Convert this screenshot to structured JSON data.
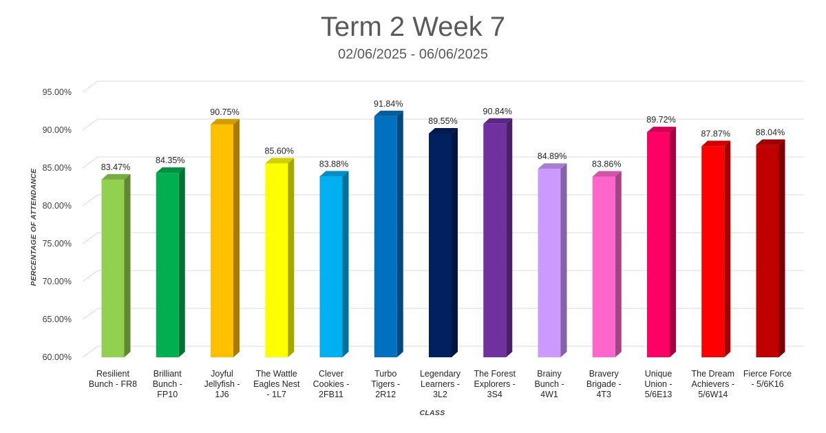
{
  "chart_data": {
    "type": "bar",
    "title": "Term 2 Week 7",
    "subtitle": "02/06/2025 - 06/06/2025",
    "xlabel": "CLASS",
    "ylabel": "PERCENTAGE OF ATTENDANCE",
    "ylim": [
      60,
      95
    ],
    "yticks": [
      "60.00%",
      "65.00%",
      "70.00%",
      "75.00%",
      "80.00%",
      "85.00%",
      "90.00%",
      "95.00%"
    ],
    "grid": true,
    "style": "3d-columns",
    "categories": [
      [
        "Resilient",
        "Bunch - FR8"
      ],
      [
        "Brilliant",
        "Bunch -",
        "FP10"
      ],
      [
        "Joyful",
        "Jellyfish -",
        "1J6"
      ],
      [
        "The Wattle",
        "Eagles Nest",
        "- 1L7"
      ],
      [
        "Clever",
        "Cookies -",
        "2FB11"
      ],
      [
        "Turbo",
        "Tigers -",
        "2R12"
      ],
      [
        "Legendary",
        "Learners -",
        "3L2"
      ],
      [
        "The Forest",
        "Explorers -",
        "3S4"
      ],
      [
        "Brainy",
        "Bunch -",
        "4W1"
      ],
      [
        "Bravery",
        "Brigade -",
        "4T3"
      ],
      [
        "Unique",
        "Union -",
        "5/6E13"
      ],
      [
        "The Dream",
        "Achievers -",
        "5/6W14"
      ],
      [
        "Fierce Force",
        "- 5/6K16"
      ]
    ],
    "values": [
      83.47,
      84.35,
      90.75,
      85.6,
      83.88,
      91.84,
      89.55,
      90.84,
      84.89,
      83.86,
      89.72,
      87.87,
      88.04
    ],
    "data_labels": [
      "83.47%",
      "84.35%",
      "90.75%",
      "85.60%",
      "83.88%",
      "91.84%",
      "89.55%",
      "90.84%",
      "84.89%",
      "83.86%",
      "89.72%",
      "87.87%",
      "88.04%"
    ],
    "colors": [
      "#92D050",
      "#00B050",
      "#FFC000",
      "#FFFF00",
      "#00B0F0",
      "#0070C0",
      "#002060",
      "#7030A0",
      "#CC99FF",
      "#FF66CC",
      "#FF0066",
      "#FF0000",
      "#C00000"
    ]
  }
}
